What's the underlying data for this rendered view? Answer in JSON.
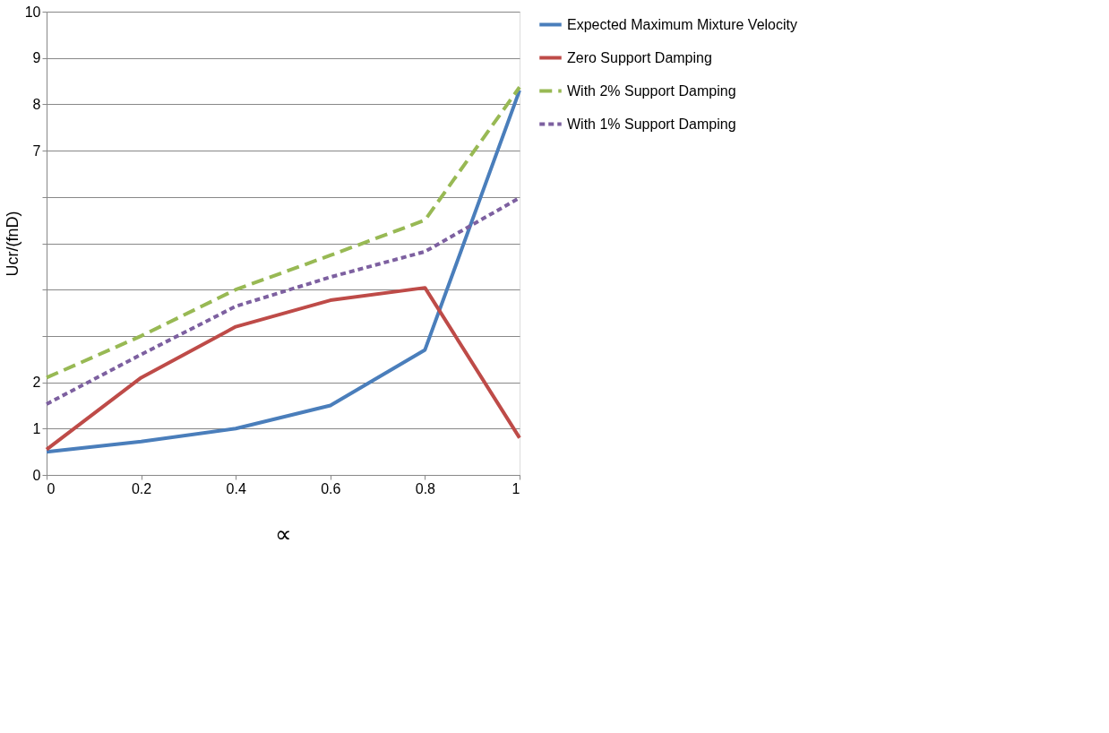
{
  "chart_data": {
    "type": "line",
    "xlabel": "∝",
    "ylabel": "Ucr/(fnD)",
    "x": [
      0,
      0.2,
      0.4,
      0.6,
      0.8,
      1
    ],
    "series": [
      {
        "name": "Expected Maximum Mixture Velocity",
        "color": "#4a7ebb",
        "line_style": "solid",
        "values": [
          0.5,
          0.72,
          1.0,
          1.5,
          2.7,
          8.3
        ]
      },
      {
        "name": "Zero Support Damping",
        "color": "#be4b48",
        "line_style": "solid",
        "values": [
          0.55,
          2.1,
          3.2,
          3.77,
          4.04,
          0.8
        ]
      },
      {
        "name": "With 2% Support Damping",
        "color": "#98b954",
        "line_style": "dashed",
        "values": [
          2.1,
          3.0,
          4.0,
          4.74,
          5.5,
          8.37
        ]
      },
      {
        "name": "With 1% Support Damping",
        "color": "#7d60a0",
        "line_style": "dotted",
        "values": [
          1.53,
          2.6,
          3.64,
          4.27,
          4.82,
          5.98
        ]
      }
    ],
    "xlim": [
      0,
      1
    ],
    "xticks": [
      0,
      0.2,
      0.4,
      0.6,
      0.8,
      1
    ],
    "ylim": [
      0,
      10
    ],
    "yticks": [
      0,
      1,
      2,
      {
        "value": 3,
        "label": null
      },
      {
        "value": 4,
        "label": null
      },
      {
        "value": 5,
        "label": null
      },
      {
        "value": 6,
        "label": null
      },
      7,
      8,
      9,
      10
    ],
    "grid": "y",
    "legend": "right",
    "marker": "none"
  }
}
